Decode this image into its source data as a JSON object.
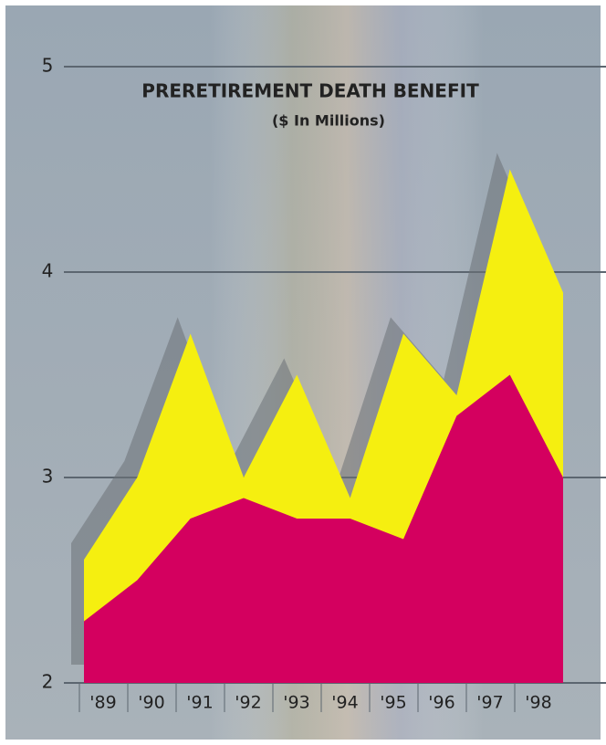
{
  "chart_data": {
    "type": "area",
    "title": "PRERETIREMENT DEATH BENEFIT",
    "subtitle": "($ In Millions)",
    "categories": [
      "'89",
      "'90",
      "'91",
      "'92",
      "'93",
      "'94",
      "'95",
      "'96",
      "'97",
      "'98"
    ],
    "series": [
      {
        "color": "#f5ef10",
        "values": [
          2.6,
          3.0,
          3.7,
          3.0,
          3.5,
          2.9,
          3.7,
          3.4,
          4.5,
          3.9
        ]
      },
      {
        "color": "#d4005f",
        "values": [
          2.3,
          2.5,
          2.8,
          2.9,
          2.8,
          2.8,
          2.7,
          3.3,
          3.5,
          3.0
        ]
      }
    ],
    "ylim": [
      2,
      5
    ],
    "yticks": [
      2,
      3,
      4,
      5
    ],
    "grid": true
  }
}
